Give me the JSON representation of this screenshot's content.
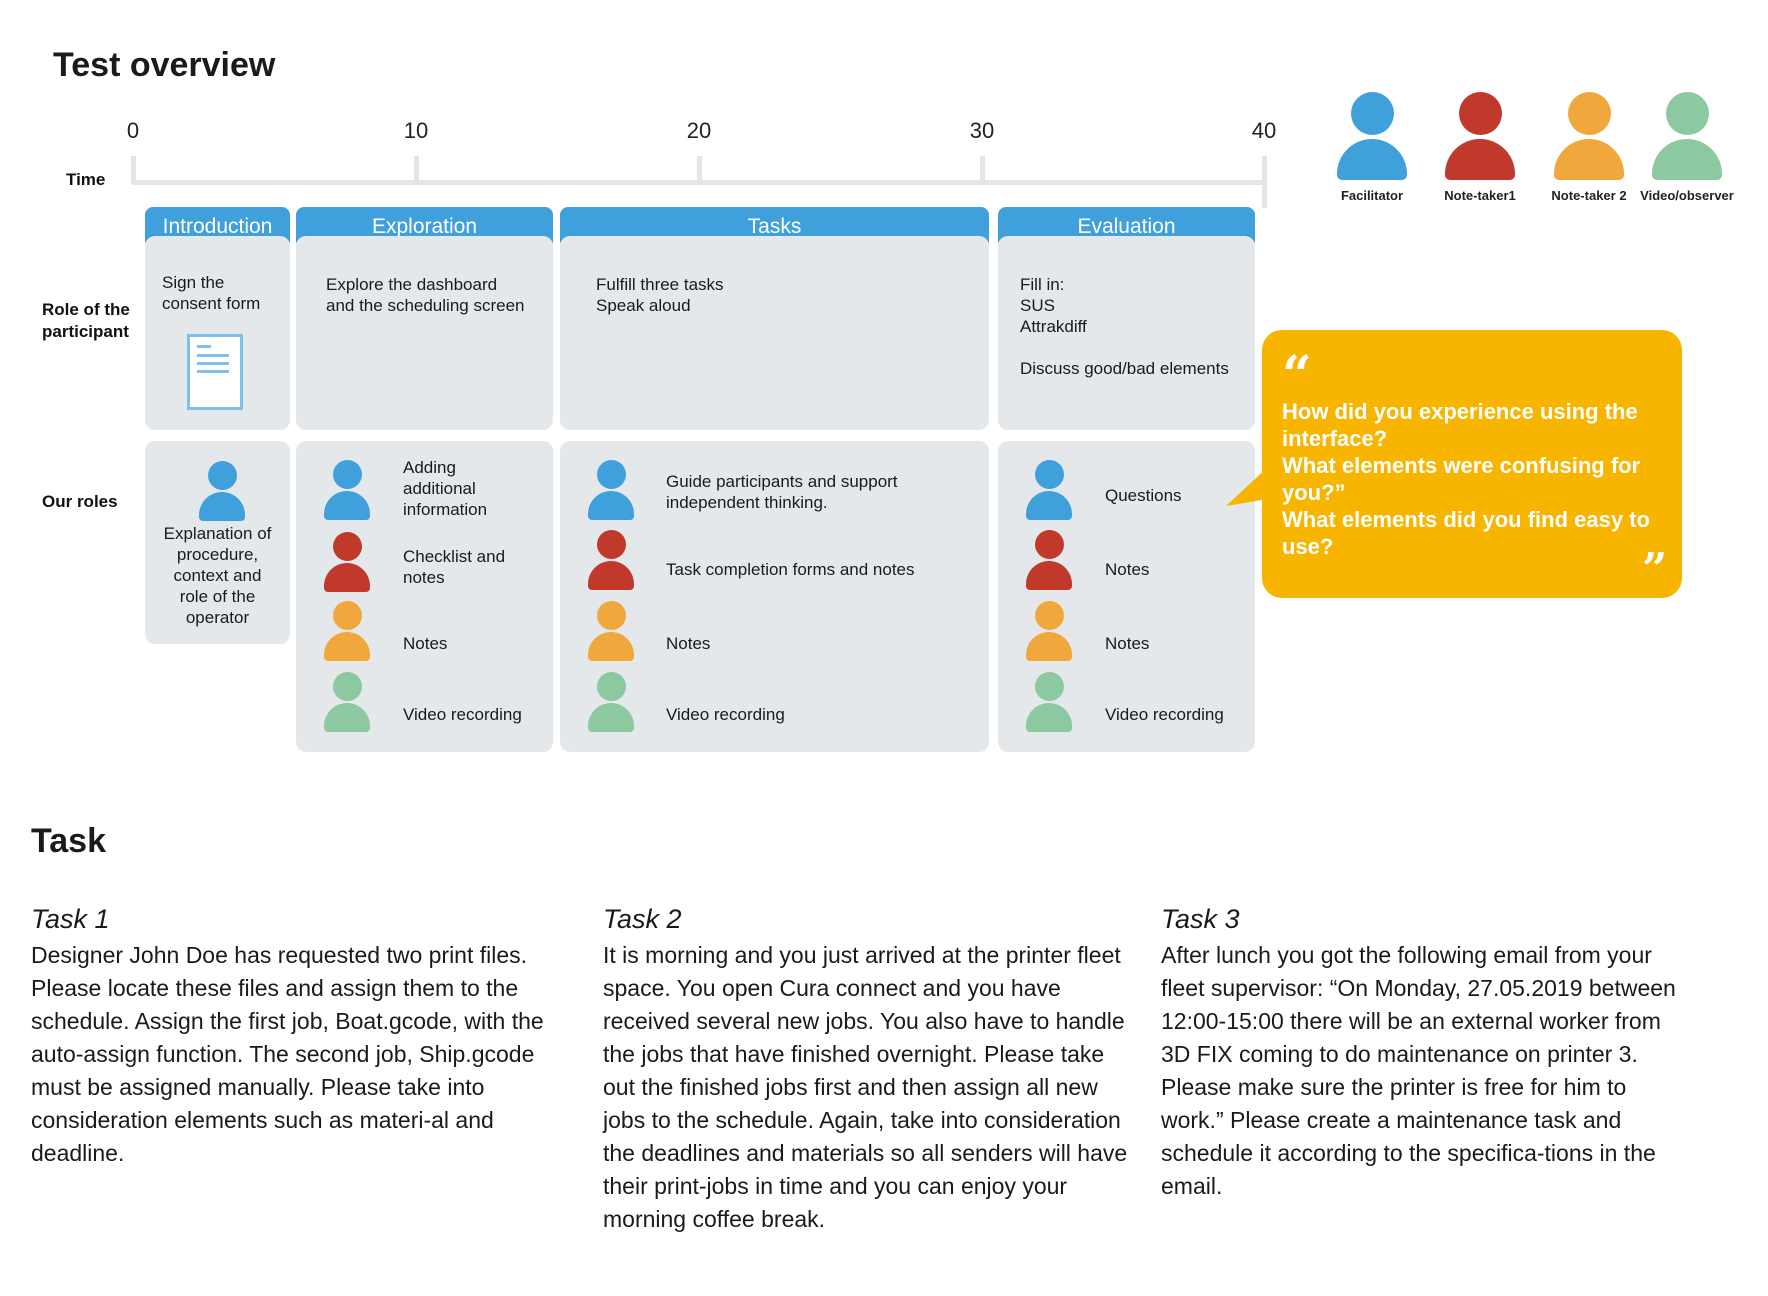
{
  "title": "Test overview",
  "timeline": {
    "label": "Time",
    "ticks": [
      "0",
      "10",
      "20",
      "30",
      "40"
    ]
  },
  "row_labels": {
    "role": "Role of the\nparticipant",
    "ours": "Our roles"
  },
  "legend": [
    {
      "label": "Facilitator",
      "color": "#3fa0dc"
    },
    {
      "label": "Note-taker1",
      "color": "#c0392b"
    },
    {
      "label": "Note-taker 2",
      "color": "#f0a83c"
    },
    {
      "label": "Video/observer",
      "color": "#8cc8a0"
    }
  ],
  "phases": [
    {
      "name": "Introduction",
      "participant": "Sign the\nconsent form",
      "roles": [
        "Explanation of\nprocedure,\ncontext and\nrole of the\noperator"
      ]
    },
    {
      "name": "Exploration",
      "participant": "Explore the dashboard\nand the scheduling screen",
      "roles": [
        "Adding\nadditional\ninformation",
        "Checklist and\nnotes",
        "Notes",
        "Video recording"
      ]
    },
    {
      "name": "Tasks",
      "participant": "Fulfill three tasks\nSpeak aloud",
      "roles": [
        "Guide participants and support\nindependent thinking.",
        "Task completion forms and notes",
        "Notes",
        "Video recording"
      ]
    },
    {
      "name": "Evaluation",
      "participant": "Fill in:\nSUS\nAttrakdiff\n\nDiscuss good/bad elements",
      "roles": [
        "Questions",
        "Notes",
        "Notes",
        "Video recording"
      ]
    }
  ],
  "quote": {
    "text": "How did you experience using the\ninterface?\nWhat elements were confusing for\nyou?”\nWhat elements did you find easy to\nuse?",
    "color": "#f7b500"
  },
  "task_section": {
    "title": "Task",
    "tasks": [
      {
        "title": "Task 1",
        "body": "Designer John Doe has requested two print files. Please locate these files and assign them to the schedule. Assign the first job, Boat.gcode, with the auto-assign function. The second job, Ship.gcode must be assigned manually. Please take into consideration elements such as materi-al and deadline."
      },
      {
        "title": "Task 2",
        "body": "It is morning and you just arrived at the printer fleet space. You open Cura connect and you have received several new jobs. You also have to handle the jobs that have finished overnight. Please take out the finished jobs first and then assign all new jobs to the schedule. Again, take into consideration the deadlines and materials so all senders will have their print-jobs in time and you can enjoy your morning coffee break."
      },
      {
        "title": "Task 3",
        "body": "After lunch you got the following email from your fleet supervisor: “On Monday, 27.05.2019 between 12:00-15:00 there will be an external worker from 3D FIX coming to do maintenance on printer 3. Please make sure the printer is free for him to work.” Please create a maintenance task and schedule it according to the specifica-tions in the email."
      }
    ]
  }
}
